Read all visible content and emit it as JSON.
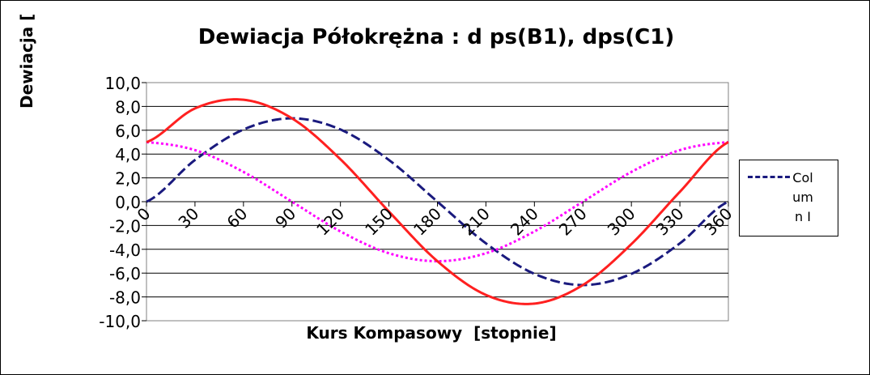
{
  "chart_data": {
    "type": "line",
    "title": "Dewiacja Półokrężna : d ps(B1), dps(C1)",
    "xlabel": "Kurs Kompasowy  [stopnie]",
    "ylabel": "Dewiacja [",
    "categories": [
      0,
      30,
      60,
      90,
      120,
      150,
      180,
      210,
      240,
      270,
      300,
      330,
      360
    ],
    "x_tick_labels": [
      "0",
      "30",
      "60",
      "90",
      "120",
      "150",
      "180",
      "210",
      "240",
      "270",
      "300",
      "330",
      "360"
    ],
    "y_tick_labels": [
      "10,0",
      "8,0",
      "6,0",
      "4,0",
      "2,0",
      "0,0",
      "-2,0",
      "-4,0",
      "-6,0",
      "-8,0",
      "-10,0"
    ],
    "ylim": [
      -10,
      10
    ],
    "xlim": [
      0,
      360
    ],
    "grid": true,
    "legend_position": "right",
    "series": [
      {
        "name": "Column I",
        "color": "#1a1a7e",
        "style": "dashed",
        "values": [
          0.0,
          3.5,
          6.06,
          7.0,
          6.06,
          3.5,
          0.0,
          -3.5,
          -6.06,
          -7.0,
          -6.06,
          -3.5,
          0.0
        ]
      },
      {
        "color": "#ff00ff",
        "style": "dotted",
        "values": [
          5.0,
          4.33,
          2.5,
          0.0,
          -2.5,
          -4.33,
          -5.0,
          -4.33,
          -2.5,
          0.0,
          2.5,
          4.33,
          5.0
        ]
      },
      {
        "color": "#ff2020",
        "style": "solid",
        "values": [
          5.0,
          7.83,
          8.56,
          7.0,
          3.56,
          -0.83,
          -5.0,
          -7.83,
          -8.56,
          -7.0,
          -3.56,
          0.83,
          5.0
        ]
      }
    ]
  }
}
